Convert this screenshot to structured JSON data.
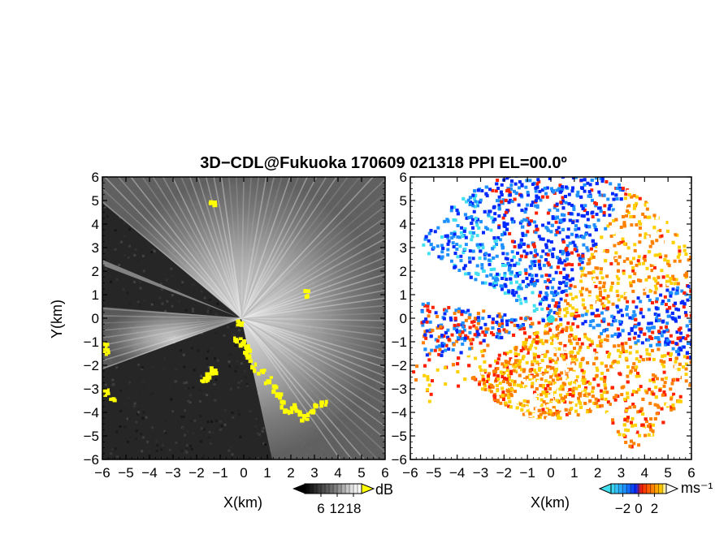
{
  "chart_data": {
    "title": "3D−CDL@Fukuoka 170609 021318 PPI EL=00.0º",
    "panels": [
      {
        "type": "heatmap",
        "quantity": "signal-to-noise ratio",
        "xlabel": "X(km)",
        "ylabel": "Y(km)",
        "xlim": [
          -6,
          6
        ],
        "ylim": [
          -6,
          6
        ],
        "xticks": [
          -6,
          -5,
          -4,
          -3,
          -2,
          -1,
          0,
          1,
          2,
          3,
          4,
          5,
          6
        ],
        "yticks": [
          -6,
          -5,
          -4,
          -3,
          -2,
          -1,
          0,
          1,
          2,
          3,
          4,
          5,
          6
        ],
        "colorbar": {
          "unit": "dB",
          "ticks": [
            6,
            12,
            18
          ],
          "colors": [
            "#000000",
            "#404040",
            "#808080",
            "#c0c0c0",
            "#ffffff",
            "#ffff00"
          ]
        }
      },
      {
        "type": "heatmap",
        "quantity": "radial velocity",
        "xlabel": "X(km)",
        "ylabel": "",
        "xlim": [
          -6,
          6
        ],
        "ylim": [
          -6,
          6
        ],
        "xticks": [
          -6,
          -5,
          -4,
          -3,
          -2,
          -1,
          0,
          1,
          2,
          3,
          4,
          5,
          6
        ],
        "yticks": [
          -6,
          -5,
          -4,
          -3,
          -2,
          -1,
          0,
          1,
          2,
          3,
          4,
          5,
          6
        ],
        "colorbar": {
          "unit": "ms⁻¹",
          "ticks": [
            -2,
            0,
            2
          ],
          "colors": [
            "#40e0f0",
            "#1e90ff",
            "#0028ff",
            "#ff2000",
            "#ff8000",
            "#ffd000",
            "#ffffff"
          ]
        }
      }
    ]
  }
}
